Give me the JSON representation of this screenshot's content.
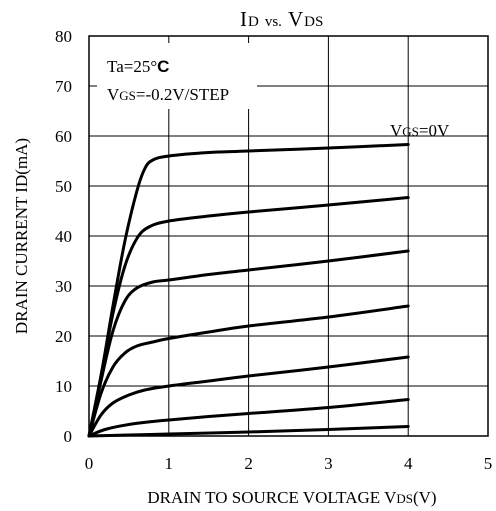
{
  "chart_data": {
    "type": "line",
    "title": {
      "main_1": "I",
      "sub_1": "D",
      "vs": "vs.",
      "main_2": "V",
      "sub_2": "DS"
    },
    "xlabel": {
      "prefix": "DRAIN TO SOURCE VOLTAGE  V",
      "sub": "DS",
      "suffix": "(V)"
    },
    "ylabel": "DRAIN CURRENT  ID(mA)",
    "xlim": [
      0,
      5
    ],
    "ylim": [
      0,
      80
    ],
    "x_ticks": [
      "0",
      "1",
      "2",
      "3",
      "4",
      "5"
    ],
    "y_ticks": [
      "0",
      "10",
      "20",
      "30",
      "40",
      "50",
      "60",
      "70",
      "80"
    ],
    "grid": true,
    "annotations": {
      "ta_main": "Ta=25°",
      "ta_unit": "C",
      "vgs_prefix": "V",
      "vgs_sub": "GS",
      "vgs_value": "=-0.2V/STEP",
      "curve_label_prefix": "V",
      "curve_label_sub": "GS",
      "curve_label_value": "=0V"
    },
    "series": [
      {
        "label_key": "vgs_0",
        "points": [
          [
            0,
            0
          ],
          [
            0.15,
            12
          ],
          [
            0.3,
            26
          ],
          [
            0.45,
            39
          ],
          [
            0.6,
            49
          ],
          [
            0.7,
            53.5
          ],
          [
            0.8,
            55.2
          ],
          [
            1,
            56
          ],
          [
            1.5,
            56.7
          ],
          [
            2,
            57
          ],
          [
            3,
            57.6
          ],
          [
            4,
            58.3
          ]
        ]
      },
      {
        "label_key": "vgs_m1",
        "points": [
          [
            0,
            0
          ],
          [
            0.15,
            12
          ],
          [
            0.3,
            24.5
          ],
          [
            0.45,
            34
          ],
          [
            0.6,
            39.5
          ],
          [
            0.75,
            41.8
          ],
          [
            1,
            43
          ],
          [
            1.5,
            44
          ],
          [
            2,
            44.8
          ],
          [
            3,
            46.2
          ],
          [
            4,
            47.7
          ]
        ]
      },
      {
        "label_key": "vgs_m2",
        "points": [
          [
            0,
            0
          ],
          [
            0.15,
            11
          ],
          [
            0.3,
            21
          ],
          [
            0.45,
            27
          ],
          [
            0.6,
            29.6
          ],
          [
            0.8,
            30.8
          ],
          [
            1,
            31.2
          ],
          [
            1.5,
            32.3
          ],
          [
            2,
            33.2
          ],
          [
            3,
            35
          ],
          [
            4,
            37
          ]
        ]
      },
      {
        "label_key": "vgs_m3",
        "points": [
          [
            0,
            0
          ],
          [
            0.15,
            8.5
          ],
          [
            0.3,
            13.8
          ],
          [
            0.45,
            16.6
          ],
          [
            0.6,
            18
          ],
          [
            0.8,
            18.8
          ],
          [
            1,
            19.5
          ],
          [
            1.5,
            20.8
          ],
          [
            2,
            22
          ],
          [
            3,
            23.8
          ],
          [
            4,
            26
          ]
        ]
      },
      {
        "label_key": "vgs_m4",
        "points": [
          [
            0,
            0
          ],
          [
            0.15,
            4.2
          ],
          [
            0.3,
            6.6
          ],
          [
            0.5,
            8.2
          ],
          [
            0.7,
            9.2
          ],
          [
            1,
            10
          ],
          [
            1.5,
            11
          ],
          [
            2,
            12
          ],
          [
            3,
            13.8
          ],
          [
            4,
            15.8
          ]
        ]
      },
      {
        "label_key": "vgs_m5",
        "points": [
          [
            0,
            0
          ],
          [
            0.2,
            1.3
          ],
          [
            0.5,
            2.3
          ],
          [
            0.8,
            2.9
          ],
          [
            1,
            3.2
          ],
          [
            1.5,
            3.9
          ],
          [
            2,
            4.5
          ],
          [
            3,
            5.7
          ],
          [
            4,
            7.3
          ]
        ]
      },
      {
        "label_key": "vgs_m6",
        "points": [
          [
            0,
            0
          ],
          [
            0.5,
            0.2
          ],
          [
            1,
            0.4
          ],
          [
            2,
            0.8
          ],
          [
            3,
            1.3
          ],
          [
            4,
            1.9
          ]
        ]
      }
    ]
  }
}
